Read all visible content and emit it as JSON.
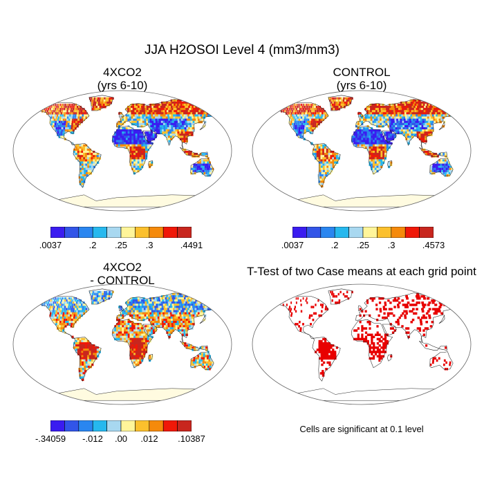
{
  "figure": {
    "title": "JJA H2OSOI Level 4 (mm3/mm3)"
  },
  "colors": {
    "scale": [
      "#3a1cf0",
      "#3255e8",
      "#2a86f0",
      "#26b8ee",
      "#a8d8f0",
      "#fff59a",
      "#fbc02d",
      "#f58a0b",
      "#f01808",
      "#c8261e"
    ],
    "significance": "#e80000",
    "continent_outline": "#222222",
    "map_border": "#666666"
  },
  "panels": [
    {
      "id": "4xco2",
      "title_line1": "4XCO2",
      "title_line2": "(yrs 6-10)",
      "colorbar_labels": [
        ".0037",
        ".2",
        ".25",
        ".3",
        ".4491"
      ],
      "palette_mode": "field"
    },
    {
      "id": "control",
      "title_line1": "CONTROL",
      "title_line2": "(yrs 6-10)",
      "colorbar_labels": [
        ".0037",
        ".2",
        ".25",
        ".3",
        ".4573"
      ],
      "palette_mode": "field"
    },
    {
      "id": "difference",
      "title_line1": "4XCO2",
      "title_line2": "- CONTROL",
      "colorbar_labels": [
        "-.34059",
        "-.012",
        ".00",
        ".012",
        ".10387"
      ],
      "palette_mode": "diff"
    },
    {
      "id": "ttest",
      "title_line1": "T-Test of two Case means at each grid point",
      "title_line2": "",
      "note": "Cells are significant at 0.1 level",
      "palette_mode": "signif"
    }
  ]
}
